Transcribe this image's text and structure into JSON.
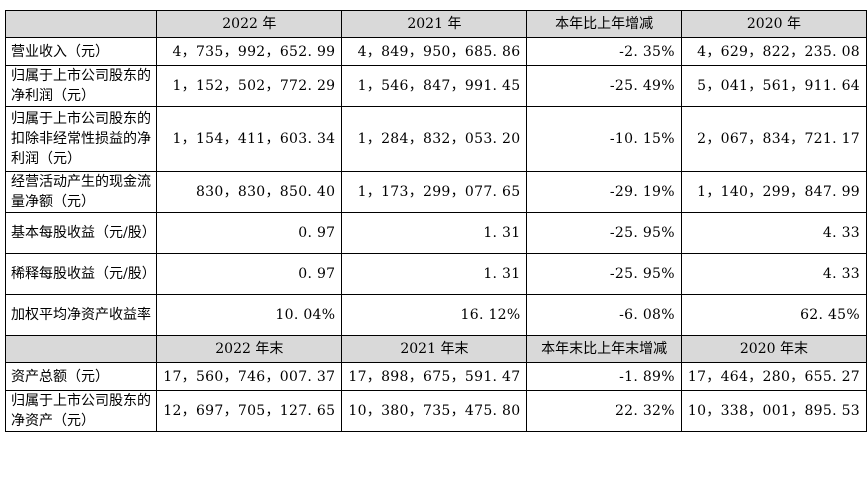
{
  "header": [
    "",
    "2022 年",
    "2021 年",
    "本年比上年增减",
    "2020 年"
  ],
  "rows": [
    {
      "label": "营业收入（元）",
      "v2022": "4，735，992，652. 99",
      "v2021": "4，849，950，685. 86",
      "change": "-2. 35%",
      "v2020": "4，629，822，235. 08"
    },
    {
      "label": "归属于上市公司股东的净利润（元）",
      "v2022": "1，152，502，772. 29",
      "v2021": "1，546，847，991. 45",
      "change": "-25. 49%",
      "v2020": "5，041，561，911. 64"
    },
    {
      "label": "归属于上市公司股东的扣除非经常性损益的净利润（元）",
      "v2022": "1，154，411，603. 34",
      "v2021": "1，284，832，053. 20",
      "change": "-10. 15%",
      "v2020": "2，067，834，721. 17"
    },
    {
      "label": "经营活动产生的现金流量净额（元）",
      "v2022": "830，830，850. 40",
      "v2021": "1，173，299，077. 65",
      "change": "-29. 19%",
      "v2020": "1，140，299，847. 99"
    },
    {
      "label": "基本每股收益（元/股）",
      "v2022": "0. 97",
      "v2021": "1. 31",
      "change": "-25. 95%",
      "v2020": "4. 33"
    },
    {
      "label": "稀释每股收益（元/股）",
      "v2022": "0. 97",
      "v2021": "1. 31",
      "change": "-25. 95%",
      "v2020": "4. 33"
    },
    {
      "label": "加权平均净资产收益率",
      "v2022": "10. 04%",
      "v2021": "16. 12%",
      "change": "-6. 08%",
      "v2020": "62. 45%"
    }
  ],
  "header2": [
    "",
    "2022 年末",
    "2021 年末",
    "本年末比上年末增减",
    "2020 年末"
  ],
  "rows2": [
    {
      "label": "资产总额（元）",
      "v2022": "17，560，746，007. 37",
      "v2021": "17，898，675，591. 47",
      "change": "-1. 89%",
      "v2020": "17，464，280，655. 27"
    },
    {
      "label": "归属于上市公司股东的净资产（元）",
      "v2022": "12，697，705，127. 65",
      "v2021": "10，380，735，475. 80",
      "change": "22. 32%",
      "v2020": "10，338，001，895. 53"
    }
  ]
}
